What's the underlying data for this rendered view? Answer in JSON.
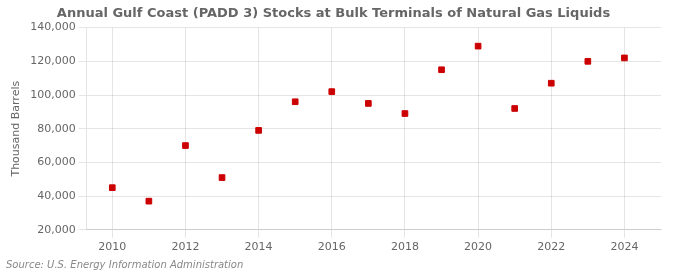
{
  "chart_data": {
    "type": "scatter",
    "title": "Annual Gulf Coast (PADD 3) Stocks at Bulk Terminals of Natural Gas Liquids",
    "ylabel": "Thousand Barrels",
    "annotations": [
      "Source: U.S. Energy Information Administration"
    ],
    "x": [
      2010,
      2011,
      2012,
      2013,
      2014,
      2015,
      2016,
      2017,
      2018,
      2019,
      2020,
      2021,
      2022,
      2023,
      2024
    ],
    "values": [
      45000,
      37000,
      70000,
      51000,
      79000,
      96000,
      102000,
      95000,
      89000,
      115000,
      129000,
      92000,
      107000,
      120000,
      122000
    ],
    "color": "#cc0000",
    "marker": "square",
    "xlim": [
      2009.3,
      2025.0
    ],
    "xticks": [
      2010,
      2012,
      2014,
      2016,
      2018,
      2020,
      2022,
      2024
    ],
    "ylim": [
      20000,
      140000
    ],
    "yticks": [
      {
        "value": 20000,
        "label": "20,000"
      },
      {
        "value": 40000,
        "label": "40,000"
      },
      {
        "value": 60000,
        "label": "60,000"
      },
      {
        "value": 80000,
        "label": "80,000"
      },
      {
        "value": 100000,
        "label": "100,000"
      },
      {
        "value": 120000,
        "label": "120,000"
      },
      {
        "value": 140000,
        "label": "140,000"
      }
    ],
    "grid": true
  }
}
